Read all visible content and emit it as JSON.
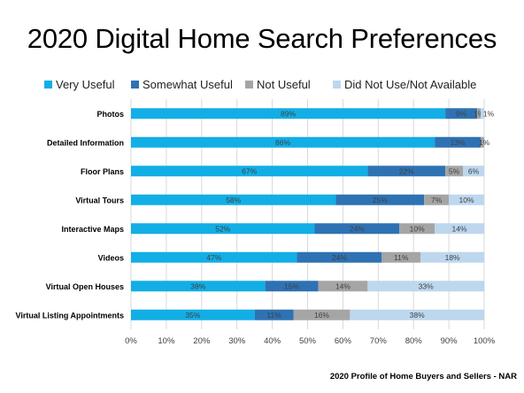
{
  "title": "2020 Digital Home Search Preferences",
  "source": "2020 Profile of Home Buyers and Sellers - NAR",
  "colors": {
    "very_useful": "#12aee6",
    "somewhat_useful": "#2e72b4",
    "not_useful": "#a5a5a5",
    "did_not_use": "#bdd7ee",
    "grid": "#d9d9d9",
    "axis_text": "#404040"
  },
  "chart_data": {
    "type": "bar",
    "orientation": "horizontal",
    "stacked": true,
    "title": "2020 Digital Home Search Preferences",
    "categories": [
      "Photos",
      "Detailed Information",
      "Floor Plans",
      "Virtual Tours",
      "Interactive Maps",
      "Videos",
      "Virtual Open Houses",
      "Virtual Listing Appointments"
    ],
    "series": [
      {
        "name": "Very Useful",
        "values": [
          89,
          86,
          67,
          58,
          52,
          47,
          38,
          35
        ]
      },
      {
        "name": "Somewhat Useful",
        "values": [
          9,
          13,
          22,
          25,
          24,
          24,
          15,
          11
        ]
      },
      {
        "name": "Not Useful",
        "values": [
          1,
          1,
          5,
          7,
          10,
          11,
          14,
          16
        ]
      },
      {
        "name": "Did Not Use/Not Available",
        "values": [
          1,
          0,
          6,
          10,
          14,
          18,
          33,
          38
        ]
      }
    ],
    "data_labels": [
      [
        "89%",
        "9%",
        "1%",
        "1%"
      ],
      [
        "86%",
        "13%",
        "1%",
        ""
      ],
      [
        "67%",
        "22%",
        "5%",
        "6%"
      ],
      [
        "58%",
        "25%",
        "7%",
        "10%"
      ],
      [
        "52%",
        "24%",
        "10%",
        "14%"
      ],
      [
        "47%",
        "24%",
        "11%",
        "18%"
      ],
      [
        "38%",
        "15%",
        "14%",
        "33%"
      ],
      [
        "35%",
        "11%",
        "16%",
        "38%"
      ]
    ],
    "x_ticks": [
      "0%",
      "10%",
      "20%",
      "30%",
      "40%",
      "50%",
      "60%",
      "70%",
      "80%",
      "90%",
      "100%"
    ],
    "xlim": [
      0,
      100
    ],
    "grid": true,
    "legend_position": "top"
  }
}
